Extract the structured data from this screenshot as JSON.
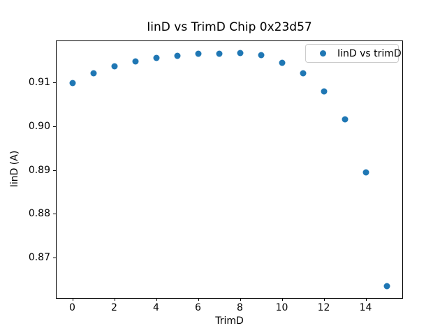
{
  "window": {
    "background_color": "#ffffff"
  },
  "chart_data": {
    "type": "scatter",
    "title": "IinD vs TrimD Chip 0x23d57",
    "xlabel": "TrimD",
    "ylabel": "IinD (A)",
    "grid": false,
    "marker": "circle",
    "marker_color": "#1f77b4",
    "axis_color": "#000000",
    "x": [
      0,
      1,
      2,
      3,
      4,
      5,
      6,
      7,
      8,
      9,
      10,
      11,
      12,
      13,
      14,
      15
    ],
    "series": [
      {
        "name": "IinD vs trimD",
        "color": "#1f77b4",
        "values": [
          0.9099,
          0.9121,
          0.9138,
          0.9148,
          0.9157,
          0.9162,
          0.9167,
          0.9166,
          0.9168,
          0.9163,
          0.9145,
          0.9122,
          0.908,
          0.9016,
          0.8894,
          0.8634
        ]
      }
    ],
    "xlim": [
      -0.75,
      15.75
    ],
    "ylim": [
      0.8607,
      0.9195
    ],
    "xticks": [
      0,
      2,
      4,
      6,
      8,
      10,
      12,
      14
    ],
    "xtick_labels": [
      "0",
      "2",
      "4",
      "6",
      "8",
      "10",
      "12",
      "14"
    ],
    "yticks": [
      0.87,
      0.88,
      0.89,
      0.9,
      0.91
    ],
    "ytick_labels": [
      "0.87",
      "0.88",
      "0.89",
      "0.90",
      "0.91"
    ],
    "legend": {
      "visible": true,
      "position": "upper right",
      "entries": [
        "IinD vs trimD"
      ],
      "border_color": "#cccccc"
    }
  }
}
